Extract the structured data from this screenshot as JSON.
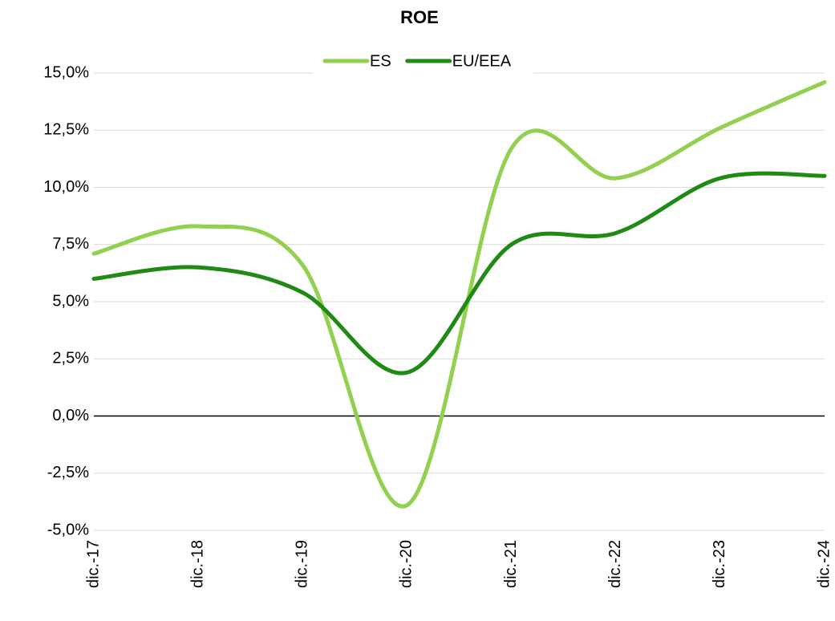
{
  "chart_data": {
    "type": "line",
    "title": "ROE",
    "categories": [
      "dic.-17",
      "dic.-18",
      "dic.-19",
      "dic.-20",
      "dic.-21",
      "dic.-22",
      "dic.-23",
      "dic.-24"
    ],
    "series": [
      {
        "name": "ES",
        "color": "#92d050",
        "values": [
          7.1,
          8.3,
          6.6,
          -3.9,
          11.7,
          10.4,
          12.6,
          14.6
        ]
      },
      {
        "name": "EU/EEA",
        "color": "#1f8a14",
        "values": [
          6.0,
          6.5,
          5.4,
          1.9,
          7.5,
          8.0,
          10.4,
          10.5
        ]
      }
    ],
    "ylim": [
      -5,
      15
    ],
    "yticks": [
      {
        "value": -5,
        "label": "-5,0%"
      },
      {
        "value": -2.5,
        "label": "-2,5%"
      },
      {
        "value": 0,
        "label": "0,0%"
      },
      {
        "value": 2.5,
        "label": "2,5%"
      },
      {
        "value": 5,
        "label": "5,0%"
      },
      {
        "value": 7.5,
        "label": "7,5%"
      },
      {
        "value": 10,
        "label": "10,0%"
      },
      {
        "value": 12.5,
        "label": "12,5%"
      },
      {
        "value": 15,
        "label": "15,0%"
      }
    ],
    "grid": true,
    "smooth": true,
    "legend": "top"
  }
}
